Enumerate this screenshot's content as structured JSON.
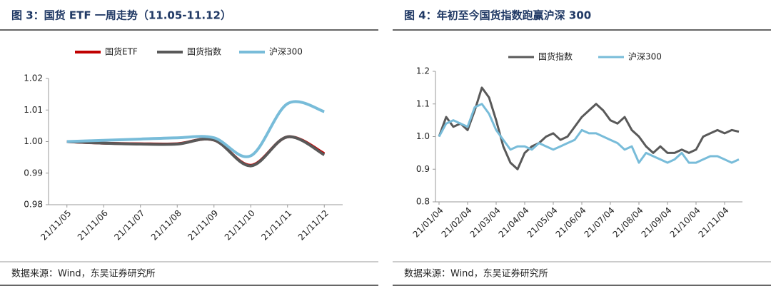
{
  "chart_data": [
    {
      "type": "line",
      "title": "图 3：国货 ETF 一周走势（11.05-11.12）",
      "source": "数据来源：Wind，东吴证券研究所",
      "smooth": true,
      "legend": "top",
      "categories": [
        "21/11/05",
        "21/11/06",
        "21/11/07",
        "21/11/08",
        "21/11/09",
        "21/11/10",
        "21/11/11",
        "21/11/12"
      ],
      "series": [
        {
          "name": "国货ETF",
          "color": "#c00000",
          "values": [
            1.0,
            0.9995,
            0.9993,
            0.9993,
            1.0005,
            0.9925,
            1.0015,
            0.9962
          ]
        },
        {
          "name": "国货指数",
          "color": "#595959",
          "values": [
            1.0,
            0.9995,
            0.9992,
            0.9992,
            1.0005,
            0.9923,
            1.0015,
            0.9958
          ]
        },
        {
          "name": "沪深300",
          "color": "#78bcd9",
          "values": [
            1.0,
            1.0004,
            1.0008,
            1.0012,
            1.0012,
            0.9955,
            1.012,
            1.0095
          ]
        }
      ],
      "ylim": [
        0.98,
        1.02
      ],
      "yticks": [
        0.98,
        0.99,
        {
          "value": 1,
          "label": "1.00"
        },
        1.01,
        1.02
      ]
    },
    {
      "type": "line",
      "title": "图 4：年初至今国货指数跑赢沪深 300",
      "source": "数据来源：Wind，东吴证券研究所",
      "smooth": false,
      "legend": "top",
      "categories": [
        "21/01/04",
        null,
        null,
        null,
        "21/02/04",
        null,
        null,
        null,
        "21/03/04",
        null,
        null,
        null,
        "21/04/04",
        null,
        null,
        null,
        "21/05/04",
        null,
        null,
        null,
        "21/06/04",
        null,
        null,
        null,
        "21/07/04",
        null,
        null,
        null,
        "21/08/04",
        null,
        null,
        null,
        "21/09/04",
        null,
        null,
        null,
        "21/10/04",
        null,
        null,
        null,
        "21/11/04",
        null,
        null
      ],
      "series": [
        {
          "name": "国货指数",
          "color": "#595959",
          "values": [
            1.0,
            1.06,
            1.03,
            1.04,
            1.02,
            1.08,
            1.15,
            1.12,
            1.05,
            0.97,
            0.92,
            0.9,
            0.95,
            0.97,
            0.98,
            1.0,
            1.01,
            0.99,
            1.0,
            1.03,
            1.06,
            1.08,
            1.1,
            1.08,
            1.05,
            1.04,
            1.06,
            1.02,
            1.0,
            0.97,
            0.95,
            0.97,
            0.95,
            0.95,
            0.96,
            0.95,
            0.96,
            1.0,
            1.01,
            1.02,
            1.01,
            1.02,
            1.015
          ]
        },
        {
          "name": "沪深300",
          "color": "#78bcd9",
          "values": [
            1.0,
            1.04,
            1.05,
            1.04,
            1.03,
            1.09,
            1.1,
            1.07,
            1.02,
            0.99,
            0.96,
            0.97,
            0.97,
            0.96,
            0.98,
            0.97,
            0.96,
            0.97,
            0.98,
            0.99,
            1.02,
            1.01,
            1.01,
            1.0,
            0.99,
            0.98,
            0.96,
            0.97,
            0.92,
            0.95,
            0.94,
            0.93,
            0.92,
            0.93,
            0.95,
            0.92,
            0.92,
            0.93,
            0.94,
            0.94,
            0.93,
            0.92,
            0.93
          ]
        }
      ],
      "ylim": [
        0.8,
        1.2
      ],
      "yticks": [
        0.8,
        0.9,
        {
          "value": 1,
          "label": "1.0"
        },
        1.1,
        1.2
      ]
    }
  ]
}
